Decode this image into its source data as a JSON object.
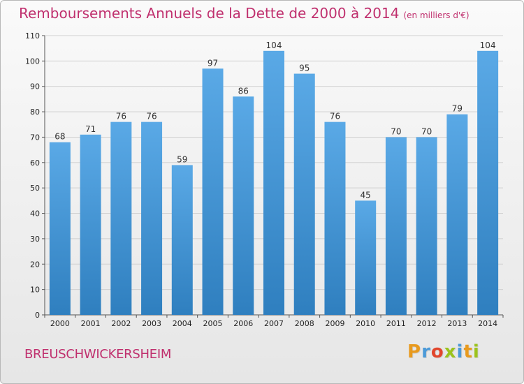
{
  "header": {
    "title": "Remboursements Annuels de la Dette de 2000 à 2014",
    "unit": "(en milliers d'€)"
  },
  "footer": {
    "commune": "BREUSCHWICKERSHEIM",
    "logo_letters": [
      "P",
      "r",
      "o",
      "x",
      "i",
      "t",
      "i"
    ],
    "logo_colors": [
      "#e89a1e",
      "#4c9ad8",
      "#e2462c",
      "#9bc31c",
      "#4c9ad8",
      "#e89a1e",
      "#9bc31c"
    ]
  },
  "chart_data": {
    "type": "bar",
    "title": "Remboursements Annuels de la Dette de 2000 à 2014",
    "categories": [
      "2000",
      "2001",
      "2002",
      "2003",
      "2004",
      "2005",
      "2006",
      "2007",
      "2008",
      "2009",
      "2010",
      "2011",
      "2012",
      "2013",
      "2014"
    ],
    "values": [
      68,
      71,
      76,
      76,
      59,
      97,
      86,
      104,
      95,
      76,
      45,
      70,
      70,
      79,
      104
    ],
    "ylim": [
      0,
      110
    ],
    "yticks": [
      0,
      10,
      20,
      30,
      40,
      50,
      60,
      70,
      80,
      90,
      100,
      110
    ],
    "grid": true,
    "bar_color_top": "#5aa9e6",
    "bar_color_bottom": "#2f7fbf"
  }
}
